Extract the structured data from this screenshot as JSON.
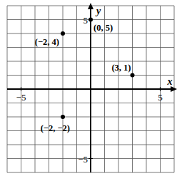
{
  "chart_data": {
    "type": "scatter",
    "x": [
      -2,
      0,
      3,
      -2
    ],
    "values": [
      4,
      5,
      1,
      -2
    ],
    "annotations": [
      "(−2, 4)",
      "(0, 5)",
      "(3, 1)",
      "(−2, −2)"
    ],
    "xlabel": "x",
    "ylabel": "y",
    "xlim": [
      -6,
      6
    ],
    "ylim": [
      -6,
      6
    ],
    "xticks": [
      -5,
      5
    ],
    "yticks": [
      -5,
      5
    ],
    "grid": true,
    "marker": "circle",
    "color": "#000000"
  }
}
